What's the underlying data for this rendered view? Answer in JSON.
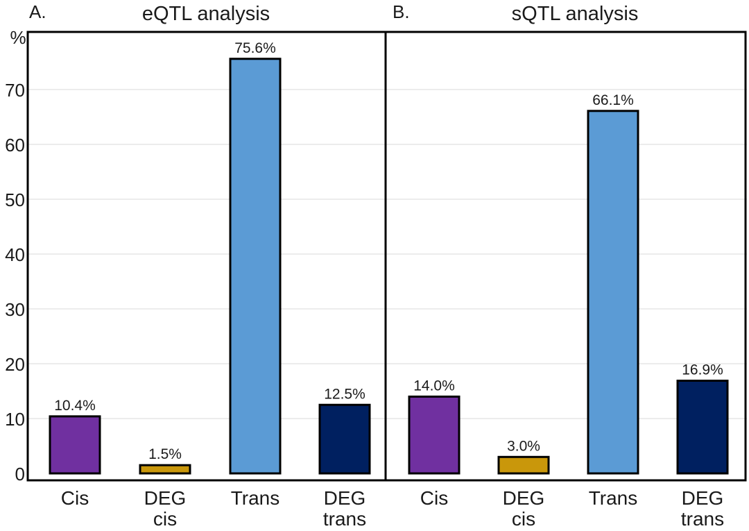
{
  "y_axis": {
    "unit_label": "%",
    "ticks": [
      0,
      10,
      20,
      30,
      40,
      50,
      60,
      70
    ],
    "ylim": [
      0,
      80
    ]
  },
  "chart_data": [
    {
      "type": "bar",
      "panel_label": "A.",
      "title": "eQTL analysis",
      "categories": [
        "Cis",
        "DEG cis",
        "Trans",
        "DEG trans"
      ],
      "category_lines": [
        [
          "Cis"
        ],
        [
          "DEG",
          "cis"
        ],
        [
          "Trans"
        ],
        [
          "DEG",
          "trans"
        ]
      ],
      "values": [
        10.4,
        1.5,
        75.6,
        12.5
      ],
      "data_labels": [
        "10.4%",
        "1.5%",
        "75.6%",
        "12.5%"
      ],
      "colors": [
        "#7030a0",
        "#c9970b",
        "#5b9bd5",
        "#002060"
      ],
      "ylabel": "%",
      "ylim": [
        0,
        80
      ],
      "grid": true
    },
    {
      "type": "bar",
      "panel_label": "B.",
      "title": "sQTL analysis",
      "categories": [
        "Cis",
        "DEG cis",
        "Trans",
        "DEG trans"
      ],
      "category_lines": [
        [
          "Cis"
        ],
        [
          "DEG",
          "cis"
        ],
        [
          "Trans"
        ],
        [
          "DEG",
          "trans"
        ]
      ],
      "values": [
        14.0,
        3.0,
        66.1,
        16.9
      ],
      "data_labels": [
        "14.0%",
        "3.0%",
        "66.1%",
        "16.9%"
      ],
      "colors": [
        "#7030a0",
        "#c9970b",
        "#5b9bd5",
        "#002060"
      ],
      "ylabel": "%",
      "ylim": [
        0,
        80
      ],
      "grid": true
    }
  ]
}
